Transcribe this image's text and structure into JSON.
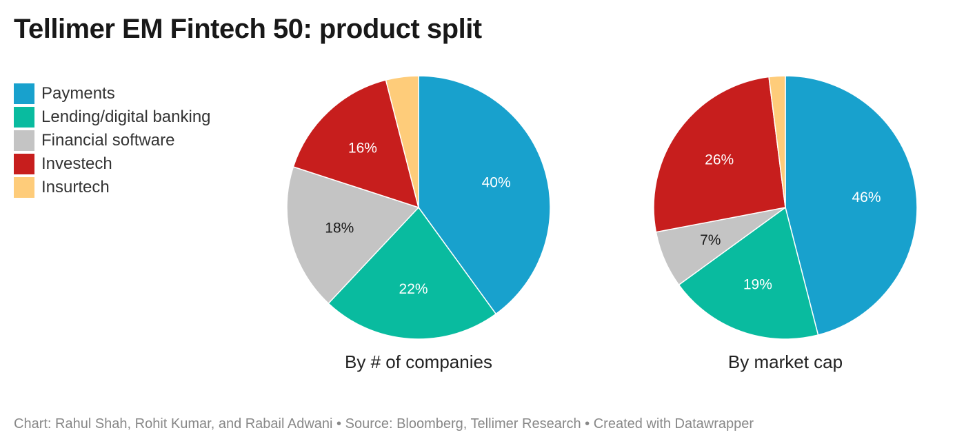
{
  "title": "Tellimer EM Fintech 50: product split",
  "footer": "Chart: Rahul Shah, Rohit Kumar, and Rabail Adwani • Source: Bloomberg, Tellimer Research • Created with Datawrapper",
  "chart_data": {
    "type": "pie",
    "legend_position": "top-left",
    "categories": [
      "Payments",
      "Lending/digital banking",
      "Financial software",
      "Investech",
      "Insurtech"
    ],
    "colors": [
      "#18a1cd",
      "#09bb9f",
      "#c4c4c4",
      "#c71e1d",
      "#fecc7a"
    ],
    "charts": [
      {
        "caption": "By # of companies",
        "values": [
          40,
          22,
          18,
          16,
          4
        ],
        "labels": [
          "40%",
          "22%",
          "18%",
          "16%",
          ""
        ]
      },
      {
        "caption": "By market cap",
        "values": [
          46,
          19,
          7,
          26,
          2
        ],
        "labels": [
          "46%",
          "19%",
          "7%",
          "26%",
          ""
        ]
      }
    ]
  }
}
